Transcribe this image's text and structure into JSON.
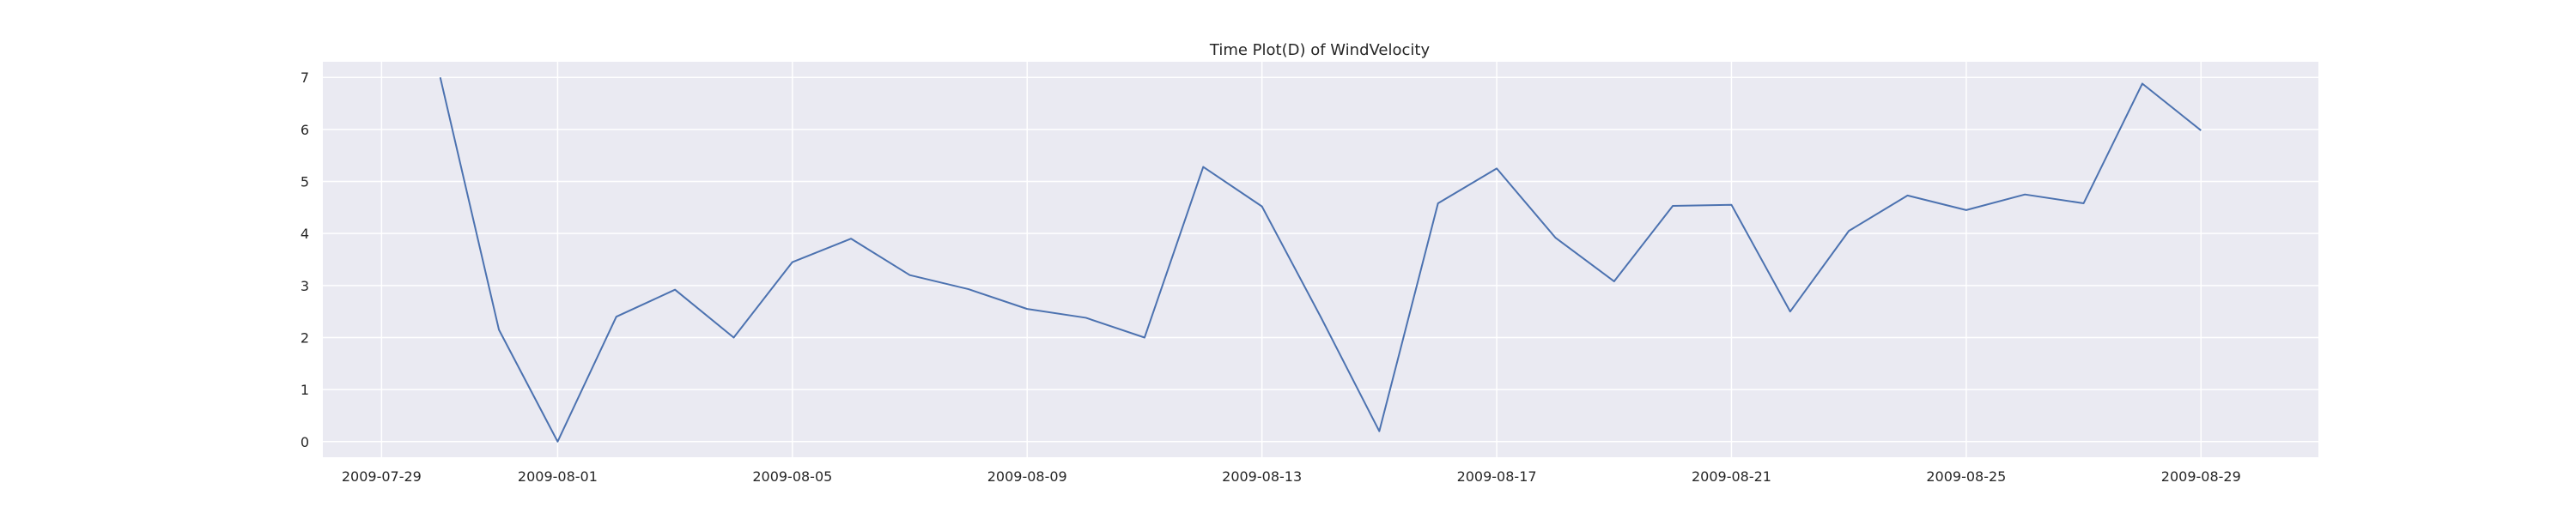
{
  "chart_data": {
    "type": "line",
    "title": "Time Plot(D) of WindVelocity",
    "xlabel": "",
    "ylabel": "",
    "x_tick_labels": [
      "2009-07-29",
      "2009-08-01",
      "2009-08-05",
      "2009-08-09",
      "2009-08-13",
      "2009-08-17",
      "2009-08-21",
      "2009-08-25",
      "2009-08-29"
    ],
    "y_tick_labels": [
      "0",
      "1",
      "2",
      "3",
      "4",
      "5",
      "6",
      "7"
    ],
    "xlim": [
      "2009-07-28",
      "2009-08-31"
    ],
    "ylim": [
      -0.3,
      7.3
    ],
    "grid": true,
    "background_color": "#eaeaf2",
    "grid_color": "#ffffff",
    "series": [
      {
        "color": "#4c72b0",
        "x": [
          "2009-07-30",
          "2009-07-31",
          "2009-08-01",
          "2009-08-02",
          "2009-08-03",
          "2009-08-04",
          "2009-08-05",
          "2009-08-06",
          "2009-08-07",
          "2009-08-08",
          "2009-08-09",
          "2009-08-10",
          "2009-08-11",
          "2009-08-12",
          "2009-08-13",
          "2009-08-14",
          "2009-08-15",
          "2009-08-16",
          "2009-08-17",
          "2009-08-18",
          "2009-08-19",
          "2009-08-20",
          "2009-08-21",
          "2009-08-22",
          "2009-08-23",
          "2009-08-24",
          "2009-08-25",
          "2009-08-26",
          "2009-08-27",
          "2009-08-28",
          "2009-08-29"
        ],
        "values": [
          7.0,
          2.15,
          0.0,
          2.4,
          2.92,
          2.0,
          3.45,
          3.9,
          3.2,
          2.93,
          2.55,
          2.38,
          2.0,
          5.28,
          4.52,
          2.4,
          0.2,
          4.58,
          5.25,
          3.92,
          3.08,
          4.53,
          4.55,
          2.5,
          4.05,
          4.73,
          4.45,
          4.75,
          4.58,
          6.88,
          5.98
        ]
      }
    ]
  }
}
